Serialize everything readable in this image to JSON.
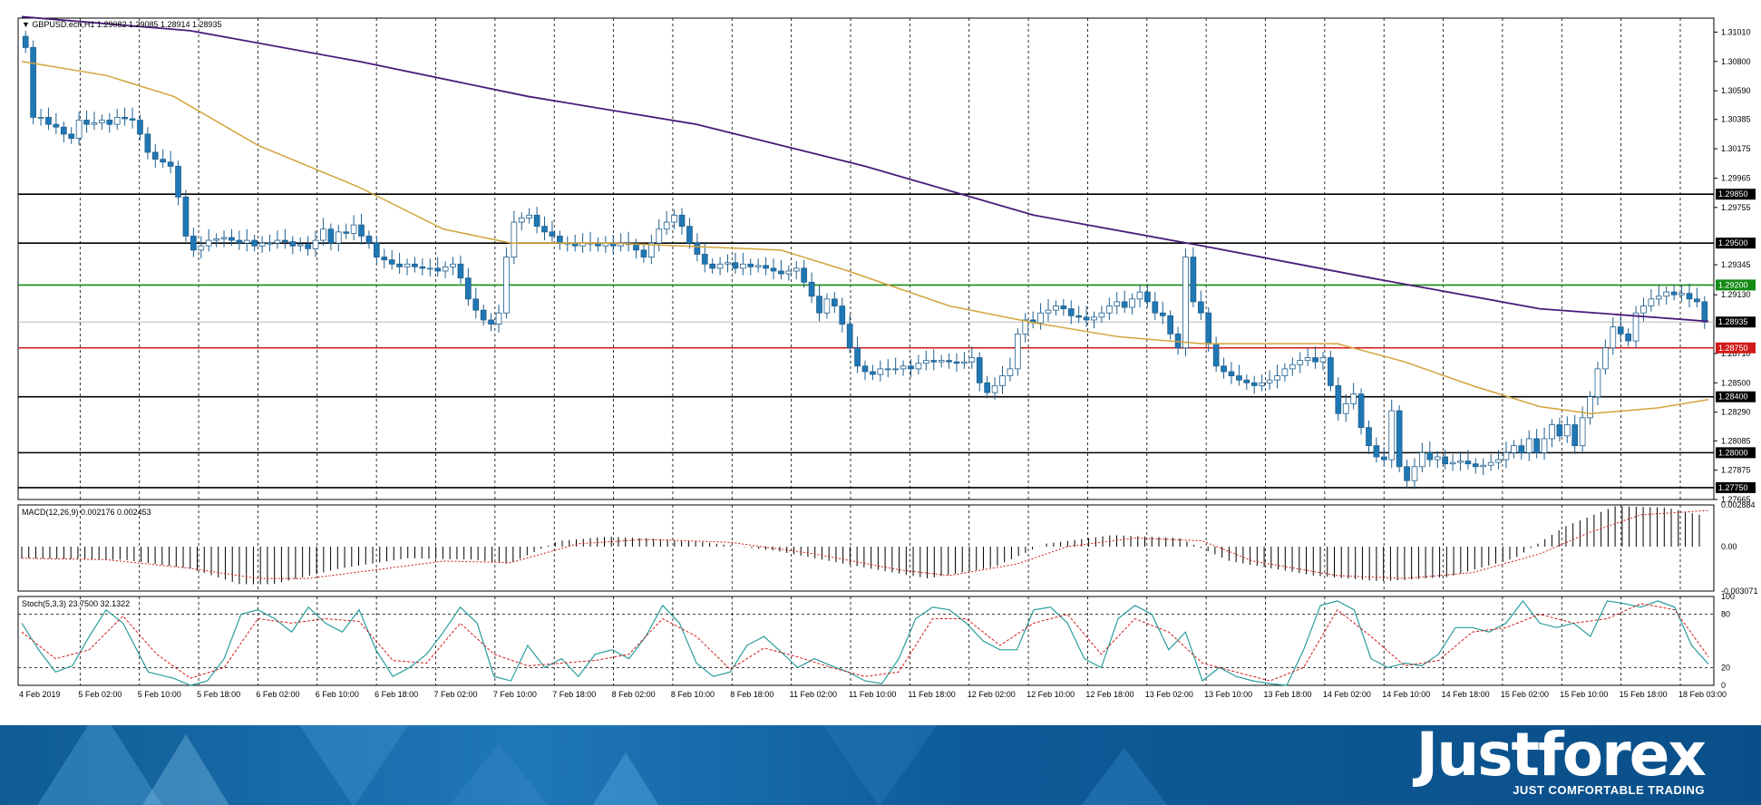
{
  "chart_data": [
    {
      "type": "candlestick",
      "title": "GBPUSD.ecn,H1  1.29082 1.29085 1.28914 1.28935",
      "ylim": [
        1.27665,
        1.3111
      ],
      "ticks": [
        "1.31010",
        "1.30800",
        "1.30590",
        "1.30385",
        "1.30175",
        "1.29965",
        "1.29755",
        "1.29345",
        "1.29130",
        "1.28710",
        "1.28500",
        "1.28290",
        "1.28085",
        "1.27875",
        "1.27665"
      ],
      "x_labels": [
        "4 Feb 2019",
        "5 Feb 02:00",
        "5 Feb 10:00",
        "5 Feb 18:00",
        "6 Feb 02:00",
        "6 Feb 10:00",
        "6 Feb 18:00",
        "7 Feb 02:00",
        "7 Feb 10:00",
        "7 Feb 18:00",
        "8 Feb 02:00",
        "8 Feb 10:00",
        "8 Feb 18:00",
        "11 Feb 02:00",
        "11 Feb 10:00",
        "11 Feb 18:00",
        "12 Feb 02:00",
        "12 Feb 10:00",
        "12 Feb 18:00",
        "13 Feb 02:00",
        "13 Feb 10:00",
        "13 Feb 18:00",
        "14 Feb 02:00",
        "14 Feb 10:00",
        "14 Feb 18:00",
        "15 Feb 02:00",
        "15 Feb 10:00",
        "15 Feb 18:00",
        "18 Feb 03:00"
      ],
      "levels": [
        {
          "value": 1.2985,
          "label": "1.29850",
          "color": "#000000"
        },
        {
          "value": 1.295,
          "label": "1.29500",
          "color": "#000000"
        },
        {
          "value": 1.292,
          "label": "1.29200",
          "color": "#138a13"
        },
        {
          "value": 1.2875,
          "label": "1.28750",
          "color": "#d11a1a"
        },
        {
          "value": 1.284,
          "label": "1.28400",
          "color": "#000000"
        },
        {
          "value": 1.28,
          "label": "1.28000",
          "color": "#000000"
        },
        {
          "value": 1.2775,
          "label": "1.27750",
          "color": "#000000"
        }
      ],
      "current_price": {
        "value": 1.28935,
        "label": "1.28935"
      },
      "closes": [
        1.309,
        1.304,
        1.304,
        1.3035,
        1.3033,
        1.3028,
        1.3025,
        1.3038,
        1.3035,
        1.3036,
        1.3038,
        1.3035,
        1.304,
        1.3039,
        1.3038,
        1.3028,
        1.3015,
        1.301,
        1.3008,
        1.3005,
        1.2983,
        1.2955,
        1.2945,
        1.2948,
        1.2952,
        1.2953,
        1.2954,
        1.2952,
        1.295,
        1.2952,
        1.2948,
        1.295,
        1.295,
        1.2952,
        1.2951,
        1.2948,
        1.2949,
        1.2946,
        1.2952,
        1.296,
        1.295,
        1.2958,
        1.2957,
        1.2963,
        1.2955,
        1.295,
        1.294,
        1.2938,
        1.2935,
        1.2933,
        1.2935,
        1.2933,
        1.2932,
        1.2932,
        1.293,
        1.2933,
        1.2935,
        1.2925,
        1.291,
        1.2902,
        1.2895,
        1.2892,
        1.29,
        1.294,
        1.2965,
        1.2968,
        1.297,
        1.2962,
        1.2958,
        1.2955,
        1.295,
        1.295,
        1.2948,
        1.295,
        1.295,
        1.2948,
        1.295,
        1.2948,
        1.295,
        1.2949,
        1.2945,
        1.294,
        1.295,
        1.296,
        1.2965,
        1.297,
        1.2962,
        1.295,
        1.2942,
        1.2935,
        1.2932,
        1.2935,
        1.2936,
        1.2932,
        1.2935,
        1.2933,
        1.2934,
        1.2932,
        1.293,
        1.2928,
        1.293,
        1.2932,
        1.2922,
        1.2912,
        1.29,
        1.291,
        1.2905,
        1.2892,
        1.2875,
        1.2862,
        1.2858,
        1.2856,
        1.286,
        1.286,
        1.286,
        1.2862,
        1.286,
        1.2864,
        1.2866,
        1.2865,
        1.2866,
        1.2865,
        1.2864,
        1.2865,
        1.2868,
        1.285,
        1.2843,
        1.2848,
        1.2855,
        1.286,
        1.2885,
        1.2895,
        1.2893,
        1.29,
        1.2902,
        1.2905,
        1.2903,
        1.2898,
        1.2897,
        1.2895,
        1.2897,
        1.29,
        1.2905,
        1.2908,
        1.2904,
        1.291,
        1.2915,
        1.2908,
        1.29,
        1.2898,
        1.2885,
        1.2875,
        1.294,
        1.2908,
        1.29,
        1.2878,
        1.2862,
        1.2858,
        1.2855,
        1.2852,
        1.285,
        1.2848,
        1.285,
        1.2852,
        1.2855,
        1.286,
        1.2863,
        1.2866,
        1.2868,
        1.2865,
        1.2868,
        1.2848,
        1.2828,
        1.2835,
        1.2842,
        1.2818,
        1.2805,
        1.2797,
        1.2795,
        1.283,
        1.279,
        1.278,
        1.279,
        1.28,
        1.2795,
        1.2797,
        1.2792,
        1.2793,
        1.2794,
        1.2792,
        1.279,
        1.2791,
        1.2793,
        1.2795,
        1.28,
        1.2805,
        1.28,
        1.281,
        1.28,
        1.281,
        1.282,
        1.2812,
        1.282,
        1.2805,
        1.2825,
        1.284,
        1.286,
        1.2875,
        1.289,
        1.2885,
        1.288,
        1.29,
        1.2905,
        1.291,
        1.2912,
        1.2915,
        1.2913,
        1.2914,
        1.291,
        1.2908,
        1.28935
      ],
      "ma_slow_points": [
        [
          0,
          1.3112
        ],
        [
          0.1,
          1.3102
        ],
        [
          0.2,
          1.308
        ],
        [
          0.3,
          1.3055
        ],
        [
          0.4,
          1.3035
        ],
        [
          0.5,
          1.3005
        ],
        [
          0.6,
          1.297
        ],
        [
          0.7,
          1.2948
        ],
        [
          0.8,
          1.2925
        ],
        [
          0.9,
          1.2903
        ],
        [
          1.0,
          1.2894
        ]
      ],
      "ma_fast_points": [
        [
          0,
          1.308
        ],
        [
          0.05,
          1.307
        ],
        [
          0.09,
          1.3055
        ],
        [
          0.14,
          1.302
        ],
        [
          0.2,
          1.299
        ],
        [
          0.25,
          1.296
        ],
        [
          0.29,
          1.295
        ],
        [
          0.35,
          1.295
        ],
        [
          0.39,
          1.2948
        ],
        [
          0.45,
          1.2945
        ],
        [
          0.49,
          1.293
        ],
        [
          0.55,
          1.2905
        ],
        [
          0.6,
          1.2893
        ],
        [
          0.65,
          1.2883
        ],
        [
          0.7,
          1.2878
        ],
        [
          0.75,
          1.2878
        ],
        [
          0.78,
          1.2878
        ],
        [
          0.82,
          1.2865
        ],
        [
          0.86,
          1.2848
        ],
        [
          0.9,
          1.2833
        ],
        [
          0.93,
          1.2828
        ],
        [
          0.97,
          1.2832
        ],
        [
          1.0,
          1.2838
        ]
      ]
    },
    {
      "type": "bar",
      "title": "MACD(12,26,9) 0.002176 0.002453",
      "ylim": [
        -0.003071,
        0.002884
      ],
      "ticks": [
        "0.002884",
        "0.00",
        "-0.003071"
      ],
      "histogram_points": [
        [
          0,
          -0.0008
        ],
        [
          0.06,
          -0.0009
        ],
        [
          0.1,
          -0.0015
        ],
        [
          0.13,
          -0.0026
        ],
        [
          0.15,
          -0.0026
        ],
        [
          0.19,
          -0.0015
        ],
        [
          0.23,
          -0.0008
        ],
        [
          0.27,
          -0.0009
        ],
        [
          0.29,
          -0.0012
        ],
        [
          0.32,
          0.0004
        ],
        [
          0.35,
          0.0007
        ],
        [
          0.4,
          0.0004
        ],
        [
          0.45,
          -0.0003
        ],
        [
          0.5,
          -0.0014
        ],
        [
          0.54,
          -0.0022
        ],
        [
          0.58,
          -0.0014
        ],
        [
          0.61,
          0.0002
        ],
        [
          0.65,
          0.0008
        ],
        [
          0.69,
          0.0006
        ],
        [
          0.72,
          -0.001
        ],
        [
          0.77,
          -0.002
        ],
        [
          0.81,
          -0.0024
        ],
        [
          0.85,
          -0.0021
        ],
        [
          0.89,
          -0.0008
        ],
        [
          0.92,
          0.0014
        ],
        [
          0.95,
          0.0028
        ],
        [
          0.98,
          0.0027
        ],
        [
          1.0,
          0.0022
        ]
      ],
      "signal_points": [
        [
          0,
          -0.0008
        ],
        [
          0.05,
          -0.0009
        ],
        [
          0.1,
          -0.0015
        ],
        [
          0.14,
          -0.0022
        ],
        [
          0.17,
          -0.0022
        ],
        [
          0.21,
          -0.0016
        ],
        [
          0.25,
          -0.001
        ],
        [
          0.29,
          -0.0011
        ],
        [
          0.33,
          0.0002
        ],
        [
          0.37,
          0.0005
        ],
        [
          0.42,
          0.0003
        ],
        [
          0.47,
          -0.0005
        ],
        [
          0.52,
          -0.0016
        ],
        [
          0.55,
          -0.002
        ],
        [
          0.59,
          -0.0012
        ],
        [
          0.62,
          0.0
        ],
        [
          0.66,
          0.0006
        ],
        [
          0.7,
          0.0004
        ],
        [
          0.73,
          -0.001
        ],
        [
          0.78,
          -0.002
        ],
        [
          0.82,
          -0.0022
        ],
        [
          0.86,
          -0.0018
        ],
        [
          0.9,
          -0.0005
        ],
        [
          0.93,
          0.001
        ],
        [
          0.96,
          0.0022
        ],
        [
          1.0,
          0.0025
        ]
      ]
    },
    {
      "type": "line",
      "title": "Stoch(5,3,3) 23.7500 32.1322",
      "ylim": [
        0,
        100
      ],
      "ticks": [
        "100",
        "80",
        "20",
        "0"
      ],
      "main_points": [
        [
          0,
          70
        ],
        [
          0.01,
          40
        ],
        [
          0.02,
          15
        ],
        [
          0.03,
          22
        ],
        [
          0.04,
          55
        ],
        [
          0.05,
          85
        ],
        [
          0.06,
          70
        ],
        [
          0.075,
          15
        ],
        [
          0.09,
          8
        ],
        [
          0.1,
          0
        ],
        [
          0.11,
          5
        ],
        [
          0.12,
          30
        ],
        [
          0.13,
          80
        ],
        [
          0.14,
          85
        ],
        [
          0.15,
          75
        ],
        [
          0.16,
          60
        ],
        [
          0.17,
          88
        ],
        [
          0.18,
          70
        ],
        [
          0.19,
          60
        ],
        [
          0.2,
          85
        ],
        [
          0.21,
          40
        ],
        [
          0.22,
          10
        ],
        [
          0.23,
          20
        ],
        [
          0.24,
          35
        ],
        [
          0.25,
          60
        ],
        [
          0.26,
          88
        ],
        [
          0.27,
          70
        ],
        [
          0.28,
          10
        ],
        [
          0.29,
          5
        ],
        [
          0.3,
          45
        ],
        [
          0.31,
          20
        ],
        [
          0.32,
          30
        ],
        [
          0.33,
          10
        ],
        [
          0.34,
          35
        ],
        [
          0.35,
          40
        ],
        [
          0.36,
          30
        ],
        [
          0.37,
          55
        ],
        [
          0.38,
          90
        ],
        [
          0.39,
          70
        ],
        [
          0.4,
          25
        ],
        [
          0.41,
          10
        ],
        [
          0.42,
          15
        ],
        [
          0.43,
          45
        ],
        [
          0.44,
          55
        ],
        [
          0.45,
          38
        ],
        [
          0.46,
          20
        ],
        [
          0.47,
          30
        ],
        [
          0.48,
          22
        ],
        [
          0.49,
          15
        ],
        [
          0.5,
          5
        ],
        [
          0.51,
          2
        ],
        [
          0.52,
          30
        ],
        [
          0.53,
          75
        ],
        [
          0.54,
          88
        ],
        [
          0.55,
          85
        ],
        [
          0.56,
          70
        ],
        [
          0.57,
          50
        ],
        [
          0.58,
          40
        ],
        [
          0.59,
          40
        ],
        [
          0.6,
          85
        ],
        [
          0.61,
          88
        ],
        [
          0.62,
          70
        ],
        [
          0.63,
          30
        ],
        [
          0.64,
          20
        ],
        [
          0.65,
          75
        ],
        [
          0.66,
          90
        ],
        [
          0.67,
          80
        ],
        [
          0.68,
          40
        ],
        [
          0.69,
          60
        ],
        [
          0.7,
          5
        ],
        [
          0.71,
          20
        ],
        [
          0.72,
          10
        ],
        [
          0.73,
          5
        ],
        [
          0.74,
          2
        ],
        [
          0.75,
          0
        ],
        [
          0.76,
          40
        ],
        [
          0.77,
          90
        ],
        [
          0.78,
          95
        ],
        [
          0.79,
          85
        ],
        [
          0.8,
          30
        ],
        [
          0.81,
          20
        ],
        [
          0.82,
          25
        ],
        [
          0.83,
          22
        ],
        [
          0.84,
          35
        ],
        [
          0.85,
          65
        ],
        [
          0.86,
          65
        ],
        [
          0.87,
          60
        ],
        [
          0.88,
          70
        ],
        [
          0.89,
          95
        ],
        [
          0.9,
          70
        ],
        [
          0.91,
          65
        ],
        [
          0.92,
          70
        ],
        [
          0.93,
          55
        ],
        [
          0.94,
          95
        ],
        [
          0.95,
          92
        ],
        [
          0.96,
          88
        ],
        [
          0.97,
          95
        ],
        [
          0.98,
          88
        ],
        [
          0.99,
          45
        ],
        [
          1.0,
          24
        ]
      ],
      "signal_points": [
        [
          0,
          60
        ],
        [
          0.02,
          30
        ],
        [
          0.04,
          40
        ],
        [
          0.06,
          78
        ],
        [
          0.08,
          35
        ],
        [
          0.1,
          8
        ],
        [
          0.12,
          20
        ],
        [
          0.14,
          75
        ],
        [
          0.16,
          70
        ],
        [
          0.18,
          75
        ],
        [
          0.2,
          72
        ],
        [
          0.22,
          28
        ],
        [
          0.24,
          25
        ],
        [
          0.26,
          70
        ],
        [
          0.28,
          35
        ],
        [
          0.3,
          22
        ],
        [
          0.32,
          25
        ],
        [
          0.34,
          28
        ],
        [
          0.36,
          35
        ],
        [
          0.38,
          75
        ],
        [
          0.4,
          55
        ],
        [
          0.42,
          18
        ],
        [
          0.44,
          42
        ],
        [
          0.46,
          32
        ],
        [
          0.48,
          20
        ],
        [
          0.5,
          10
        ],
        [
          0.52,
          15
        ],
        [
          0.54,
          75
        ],
        [
          0.56,
          75
        ],
        [
          0.58,
          45
        ],
        [
          0.6,
          70
        ],
        [
          0.62,
          80
        ],
        [
          0.64,
          35
        ],
        [
          0.66,
          75
        ],
        [
          0.68,
          60
        ],
        [
          0.7,
          25
        ],
        [
          0.72,
          15
        ],
        [
          0.74,
          5
        ],
        [
          0.76,
          20
        ],
        [
          0.78,
          85
        ],
        [
          0.8,
          55
        ],
        [
          0.82,
          22
        ],
        [
          0.84,
          28
        ],
        [
          0.86,
          60
        ],
        [
          0.88,
          65
        ],
        [
          0.9,
          80
        ],
        [
          0.92,
          70
        ],
        [
          0.94,
          75
        ],
        [
          0.96,
          92
        ],
        [
          0.98,
          85
        ],
        [
          1.0,
          32
        ]
      ]
    }
  ],
  "colors": {
    "bull": "#ffffff",
    "bear": "#1f78b4",
    "candle_outline": "#1f5f8f",
    "ma_slow": "#4a1a7a",
    "ma_fast": "#d4a33a",
    "macd_hist": "#000000",
    "macd_signal": "#d11a1a",
    "stoch_main": "#2a9d9d",
    "stoch_signal": "#d11a1a",
    "grid": "#000000",
    "current_line": "#b8b8b8"
  },
  "footer": {
    "brand": "Justforex",
    "tagline": "JUST COMFORTABLE TRADING"
  }
}
